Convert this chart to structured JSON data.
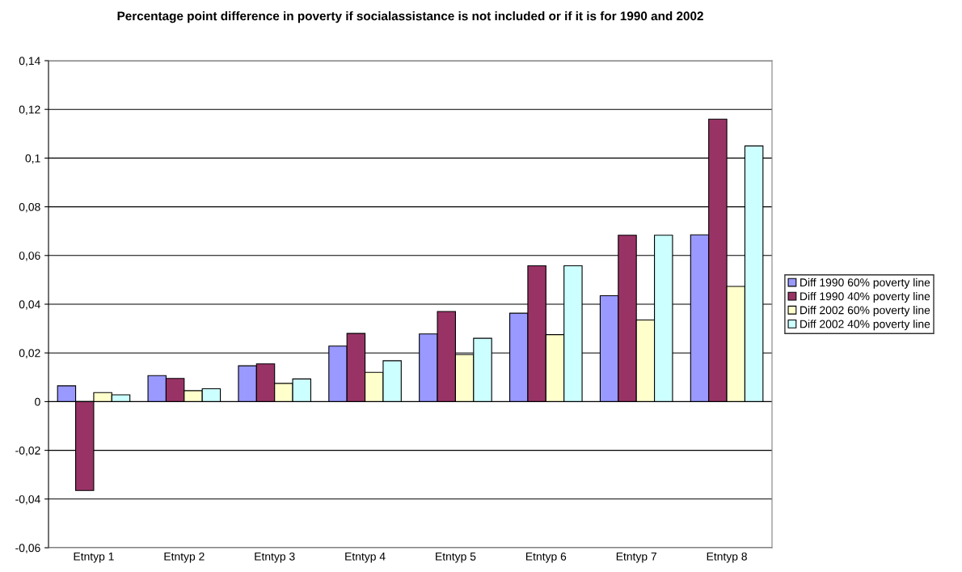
{
  "chart_data": {
    "type": "bar",
    "title": "Percentage point difference in poverty if socialassistance is not included or if it is for 1990 and 2002",
    "categories": [
      "Etntyp 1",
      "Etntyp 2",
      "Etntyp 3",
      "Etntyp 4",
      "Etntyp 5",
      "Etntyp 6",
      "Etntyp 7",
      "Etntyp 8"
    ],
    "series": [
      {
        "name": "Diff 1990 60% poverty line",
        "color": "#9999ff",
        "values": [
          0.0065,
          0.0107,
          0.0147,
          0.0228,
          0.0278,
          0.0363,
          0.0435,
          0.0685
        ]
      },
      {
        "name": "Diff 1990 40% poverty line",
        "color": "#993366",
        "values": [
          -0.0365,
          0.0095,
          0.0155,
          0.028,
          0.037,
          0.0558,
          0.0683,
          0.116
        ]
      },
      {
        "name": "Diff 2002 60% poverty line",
        "color": "#ffffcc",
        "values": [
          0.0037,
          0.0045,
          0.0075,
          0.012,
          0.0193,
          0.0275,
          0.0335,
          0.0473
        ]
      },
      {
        "name": "Diff 2002 40% poverty line",
        "color": "#ccffff",
        "values": [
          0.0028,
          0.0053,
          0.0093,
          0.0168,
          0.026,
          0.0558,
          0.0683,
          0.105
        ]
      }
    ],
    "ylim": [
      -0.06,
      0.14
    ],
    "yticks": [
      {
        "value": -0.06,
        "label": "-0,06"
      },
      {
        "value": -0.04,
        "label": "-0,04"
      },
      {
        "value": -0.02,
        "label": "-0,02"
      },
      {
        "value": 0,
        "label": "0"
      },
      {
        "value": 0.02,
        "label": "0,02"
      },
      {
        "value": 0.04,
        "label": "0,04"
      },
      {
        "value": 0.06,
        "label": "0,06"
      },
      {
        "value": 0.08,
        "label": "0,08"
      },
      {
        "value": 0.1,
        "label": "0,1"
      },
      {
        "value": 0.12,
        "label": "0,12"
      },
      {
        "value": 0.14,
        "label": "0,14"
      }
    ],
    "grid": "y",
    "legend": "right"
  }
}
